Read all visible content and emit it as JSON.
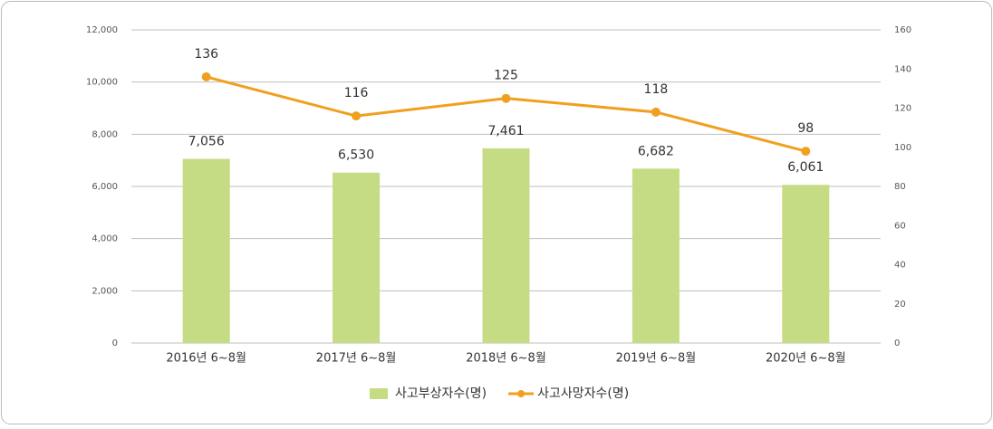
{
  "chart_data": {
    "type": "bar_line",
    "categories": [
      "2016년 6~8월",
      "2017년 6~8월",
      "2018년 6~8월",
      "2019년 6~8월",
      "2020년 6~8월"
    ],
    "series": [
      {
        "name": "사고부상자수(명)",
        "type": "bar",
        "color": "#c5dc84",
        "values": [
          7056,
          6530,
          7461,
          6682,
          6061
        ],
        "value_labels": [
          "7,056",
          "6,530",
          "7,461",
          "6,682",
          "6,061"
        ]
      },
      {
        "name": "사고사망자수(명)",
        "type": "line",
        "axis": "y2",
        "color": "#f0a01e",
        "values": [
          136,
          116,
          125,
          118,
          98
        ]
      }
    ],
    "ylim": [
      0,
      12000
    ],
    "yticks": [
      0,
      {
        "value": 2000,
        "label": "2,000"
      },
      {
        "value": 4000,
        "label": "4,000"
      },
      {
        "value": 6000,
        "label": "6,000"
      },
      {
        "value": 8000,
        "label": "8,000"
      },
      {
        "value": 10000,
        "label": "10,000"
      },
      {
        "value": 12000,
        "label": "12,000"
      }
    ],
    "y2lim": [
      0,
      160
    ],
    "y2ticks": [
      0,
      20,
      40,
      60,
      80,
      100,
      120,
      140,
      160
    ],
    "grid": true,
    "legend": "bottom"
  }
}
